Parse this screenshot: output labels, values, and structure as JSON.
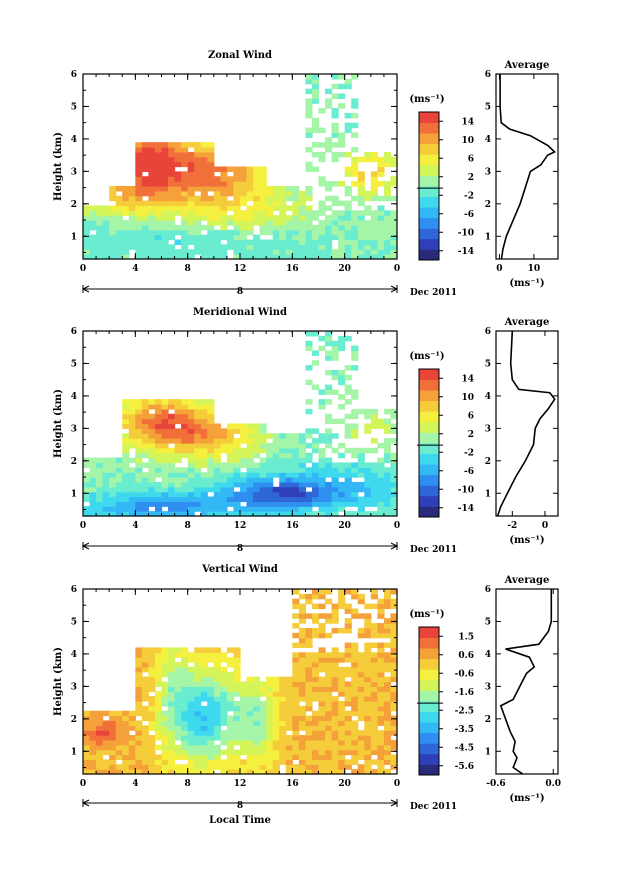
{
  "chart_data": [
    {
      "type": "heatmap",
      "title": "Zonal Wind",
      "ylabel": "Height (km)",
      "xlabel": "",
      "x_ticks": [
        "0",
        "4",
        "8",
        "12",
        "16",
        "20",
        "0"
      ],
      "xlim": [
        0,
        24
      ],
      "y_ticks": [
        "1",
        "2",
        "3",
        "4",
        "5",
        "6"
      ],
      "ylim": [
        0.3,
        6
      ],
      "date_day": "8",
      "date_label": "Dec 2011",
      "colorbar": {
        "unit": "(ms⁻¹)",
        "tick_labels": [
          "14",
          "10",
          "6",
          "2",
          "-2",
          "-6",
          "-10",
          "-14"
        ],
        "range": [
          -16,
          16
        ]
      },
      "profile": {
        "title": "Average",
        "x_ticks": [
          "0",
          "10"
        ],
        "xlim": [
          -1,
          17
        ],
        "xlabel": "(ms⁻¹)",
        "points": [
          [
            0.6,
            0.3
          ],
          [
            1.0,
            0.6
          ],
          [
            2.0,
            1.0
          ],
          [
            4.0,
            1.5
          ],
          [
            6.0,
            2.0
          ],
          [
            7.5,
            2.5
          ],
          [
            9.0,
            3.0
          ],
          [
            12.0,
            3.2
          ],
          [
            14.0,
            3.5
          ],
          [
            16.0,
            3.6
          ],
          [
            14.0,
            3.8
          ],
          [
            9.0,
            4.1
          ],
          [
            3.0,
            4.3
          ],
          [
            0.5,
            4.5
          ],
          [
            0.2,
            5.0
          ],
          [
            0.2,
            6.0
          ]
        ]
      },
      "field": {
        "time_step_h": 0.5,
        "height_step_km": 0.15,
        "blobs": [
          {
            "t": 5,
            "h": 3.3,
            "st": 2.0,
            "sh": 0.7,
            "a": 14
          },
          {
            "t": 10,
            "h": 3.0,
            "st": 3.0,
            "sh": 0.7,
            "a": 12
          },
          {
            "t": 3,
            "h": 2.2,
            "st": 2.5,
            "sh": 0.4,
            "a": 6
          },
          {
            "t": 12,
            "h": 1.8,
            "st": 4.0,
            "sh": 0.5,
            "a": 4
          },
          {
            "t": 22,
            "h": 3.0,
            "st": 1.5,
            "sh": 0.5,
            "a": 8
          },
          {
            "t": 8,
            "h": 0.9,
            "st": 6.0,
            "sh": 0.4,
            "a": -2
          }
        ],
        "coverage": [
          {
            "t0": 0,
            "t1": 2,
            "h0": 0.3,
            "h1": 2.0
          },
          {
            "t0": 2,
            "t1": 4,
            "h0": 0.3,
            "h1": 2.6
          },
          {
            "t0": 4,
            "t1": 10,
            "h0": 0.3,
            "h1": 3.9
          },
          {
            "t0": 10,
            "t1": 14,
            "h0": 0.3,
            "h1": 3.2
          },
          {
            "t0": 14,
            "t1": 17,
            "h0": 0.3,
            "h1": 2.6
          },
          {
            "t0": 17,
            "t1": 24,
            "h0": 0.3,
            "h1": 1.8
          },
          {
            "t0": 17,
            "t1": 21,
            "h0": 1.8,
            "h1": 6.0,
            "p": 0.4
          },
          {
            "t0": 21,
            "t1": 24,
            "h0": 1.8,
            "h1": 3.6,
            "p": 0.55
          }
        ]
      }
    },
    {
      "type": "heatmap",
      "title": "Meridional Wind",
      "ylabel": "Height (km)",
      "xlabel": "",
      "x_ticks": [
        "0",
        "4",
        "8",
        "12",
        "16",
        "20",
        "0"
      ],
      "xlim": [
        0,
        24
      ],
      "y_ticks": [
        "1",
        "2",
        "3",
        "4",
        "5",
        "6"
      ],
      "ylim": [
        0.3,
        6
      ],
      "date_day": "8",
      "date_label": "Dec 2011",
      "colorbar": {
        "unit": "(ms⁻¹)",
        "tick_labels": [
          "14",
          "10",
          "6",
          "2",
          "-2",
          "-6",
          "-10",
          "-14"
        ],
        "range": [
          -16,
          16
        ]
      },
      "profile": {
        "title": "Average",
        "x_ticks": [
          "-2",
          "0"
        ],
        "xlim": [
          -3,
          0.8
        ],
        "xlabel": "(ms⁻¹)",
        "points": [
          [
            -2.9,
            0.3
          ],
          [
            -2.7,
            0.6
          ],
          [
            -2.3,
            1.0
          ],
          [
            -1.8,
            1.5
          ],
          [
            -1.2,
            2.0
          ],
          [
            -0.7,
            2.5
          ],
          [
            -0.6,
            3.0
          ],
          [
            -0.3,
            3.3
          ],
          [
            0.2,
            3.6
          ],
          [
            0.6,
            3.9
          ],
          [
            0.3,
            4.1
          ],
          [
            -1.6,
            4.2
          ],
          [
            -2.0,
            4.5
          ],
          [
            -2.1,
            5.0
          ],
          [
            -2.0,
            6.0
          ]
        ]
      },
      "field": {
        "time_step_h": 0.5,
        "height_step_km": 0.15,
        "blobs": [
          {
            "t": 6,
            "h": 3.2,
            "st": 2.5,
            "sh": 0.6,
            "a": 12
          },
          {
            "t": 10,
            "h": 2.8,
            "st": 2.5,
            "sh": 0.5,
            "a": 8
          },
          {
            "t": 15,
            "h": 1.0,
            "st": 3.0,
            "sh": 0.35,
            "a": -10
          },
          {
            "t": 6,
            "h": 0.6,
            "st": 4.0,
            "sh": 0.3,
            "a": -8
          },
          {
            "t": 20,
            "h": 1.2,
            "st": 4.0,
            "sh": 0.5,
            "a": -4
          },
          {
            "t": 22,
            "h": 3.0,
            "st": 1.5,
            "sh": 0.5,
            "a": 3
          }
        ],
        "coverage": [
          {
            "t0": 0,
            "t1": 3,
            "h0": 0.3,
            "h1": 2.1
          },
          {
            "t0": 3,
            "t1": 10,
            "h0": 0.3,
            "h1": 3.9
          },
          {
            "t0": 10,
            "t1": 14,
            "h0": 0.3,
            "h1": 3.2
          },
          {
            "t0": 14,
            "t1": 17,
            "h0": 0.3,
            "h1": 2.8
          },
          {
            "t0": 17,
            "t1": 24,
            "h0": 0.3,
            "h1": 2.0
          },
          {
            "t0": 17,
            "t1": 21,
            "h0": 2.0,
            "h1": 6.0,
            "p": 0.4
          },
          {
            "t0": 21,
            "t1": 24,
            "h0": 2.0,
            "h1": 3.6,
            "p": 0.55
          }
        ]
      }
    },
    {
      "type": "heatmap",
      "title": "Vertical Wind",
      "ylabel": "Height (km)",
      "xlabel": "Local Time",
      "x_ticks": [
        "0",
        "4",
        "8",
        "12",
        "16",
        "20",
        "0"
      ],
      "xlim": [
        0,
        24
      ],
      "y_ticks": [
        "1",
        "2",
        "3",
        "4",
        "5",
        "6"
      ],
      "ylim": [
        0.3,
        6
      ],
      "date_day": "8",
      "date_label": "Dec 2011",
      "colorbar": {
        "unit": "(ms⁻¹)",
        "tick_labels": [
          "1.5",
          "0.6",
          "-0.6",
          "-1.6",
          "-2.5",
          "-3.5",
          "-4.5",
          "-5.6"
        ],
        "range": [
          -6,
          2
        ]
      },
      "profile": {
        "title": "Average",
        "x_ticks": [
          "-0.6",
          "0.0"
        ],
        "xlim": [
          -0.6,
          0.05
        ],
        "xlabel": "(ms⁻¹)",
        "points": [
          [
            -0.32,
            0.3
          ],
          [
            -0.42,
            0.5
          ],
          [
            -0.38,
            0.8
          ],
          [
            -0.42,
            1.0
          ],
          [
            -0.4,
            1.3
          ],
          [
            -0.45,
            1.6
          ],
          [
            -0.5,
            2.0
          ],
          [
            -0.55,
            2.4
          ],
          [
            -0.42,
            2.6
          ],
          [
            -0.35,
            3.0
          ],
          [
            -0.28,
            3.4
          ],
          [
            -0.2,
            3.6
          ],
          [
            -0.25,
            3.9
          ],
          [
            -0.5,
            4.15
          ],
          [
            -0.15,
            4.3
          ],
          [
            -0.05,
            4.7
          ],
          [
            -0.02,
            5.0
          ],
          [
            -0.02,
            6.0
          ]
        ]
      },
      "field": {
        "time_step_h": 0.5,
        "height_step_km": 0.15,
        "base": 0.2,
        "blobs": [
          {
            "t": 7,
            "h": 2.5,
            "st": 1.0,
            "sh": 1.2,
            "a": -2.2
          },
          {
            "t": 9,
            "h": 2.0,
            "st": 1.0,
            "sh": 1.0,
            "a": -2.6
          },
          {
            "t": 11,
            "h": 2.2,
            "st": 1.2,
            "sh": 1.0,
            "a": -2.0
          },
          {
            "t": 13.5,
            "h": 2.0,
            "st": 1.0,
            "sh": 1.0,
            "a": -1.8
          },
          {
            "t": 1.5,
            "h": 1.6,
            "st": 1.0,
            "sh": 0.3,
            "a": 1.2
          }
        ],
        "coverage": [
          {
            "t0": 0,
            "t1": 4,
            "h0": 0.3,
            "h1": 2.3
          },
          {
            "t0": 4,
            "t1": 12,
            "h0": 0.3,
            "h1": 4.2
          },
          {
            "t0": 12,
            "t1": 16,
            "h0": 0.3,
            "h1": 3.3
          },
          {
            "t0": 16,
            "t1": 24,
            "h0": 0.3,
            "h1": 4.0
          },
          {
            "t0": 16,
            "t1": 24,
            "h0": 4.0,
            "h1": 6.0,
            "p": 0.6
          }
        ]
      }
    }
  ]
}
